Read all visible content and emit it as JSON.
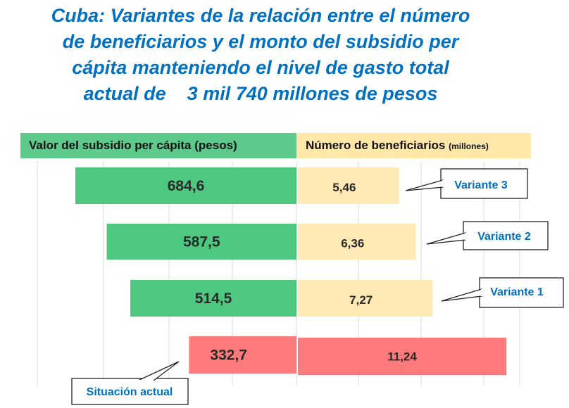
{
  "title_lines": [
    "Cuba: Variantes de la relación entre el número",
    "de beneficiarios y el monto del subsidio per",
    "cápita manteniendo el nivel de gasto total",
    "actual de    3 mil 740 millones de pesos"
  ],
  "headers": {
    "left": "Valor del subsidio per cápita (pesos)",
    "right": "Número de beneficiarios",
    "right_unit": "(millones)"
  },
  "colors": {
    "title": "#0070c0",
    "green": "#4ec880",
    "yellow": "#ffeab5",
    "red": "#ff7b7b",
    "callout_text": "#0070c0"
  },
  "chart_data": {
    "type": "bar",
    "orientation": "horizontal",
    "layout": "back-to-back",
    "title": "Cuba: Variantes de la relación entre el número de beneficiarios y el monto del subsidio per cápita manteniendo el nivel de gasto total actual de 3 mil 740 millones de pesos",
    "categories": [
      "Variante 3",
      "Variante 2",
      "Variante 1",
      "Situación actual"
    ],
    "series": [
      {
        "name": "Valor del subsidio per cápita (pesos)",
        "side": "left",
        "values": [
          684.6,
          587.5,
          514.5,
          332.7
        ],
        "labels": [
          "684,6",
          "587,5",
          "514,5",
          "332,7"
        ],
        "colors": [
          "#4ec880",
          "#4ec880",
          "#4ec880",
          "#ff7b7b"
        ]
      },
      {
        "name": "Número de beneficiarios (millones)",
        "side": "right",
        "values": [
          5.46,
          6.36,
          7.27,
          11.24
        ],
        "labels": [
          "5,46",
          "6,36",
          "7,27",
          "11,24"
        ],
        "colors": [
          "#ffeab5",
          "#ffeab5",
          "#ffeab5",
          "#ff7b7b"
        ]
      }
    ],
    "grid": true
  }
}
